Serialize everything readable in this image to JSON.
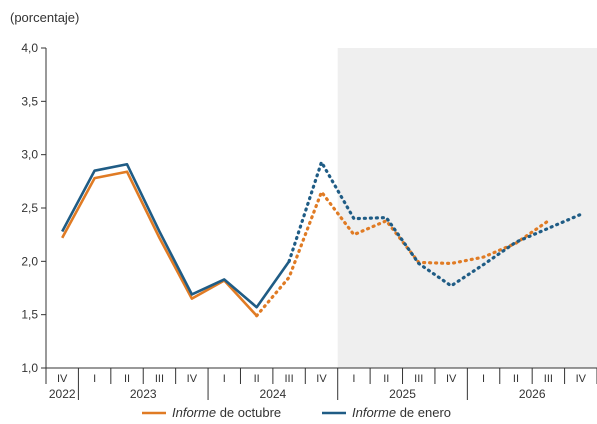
{
  "chart_data": {
    "type": "line",
    "unit_label": "(porcentaje)",
    "ylim": [
      1.0,
      4.0
    ],
    "y_ticks": [
      "1,0",
      "1,5",
      "2,0",
      "2,5",
      "3,0",
      "3,5",
      "4,0"
    ],
    "quarters": [
      "IV",
      "I",
      "II",
      "III",
      "IV",
      "I",
      "II",
      "III",
      "IV",
      "I",
      "II",
      "III",
      "IV",
      "I",
      "II",
      "III",
      "IV"
    ],
    "year_labels": [
      {
        "label": "2022",
        "start": 0,
        "end": 0
      },
      {
        "label": "2023",
        "start": 1,
        "end": 4
      },
      {
        "label": "2024",
        "start": 5,
        "end": 8
      },
      {
        "label": "2025",
        "start": 9,
        "end": 12
      },
      {
        "label": "2026",
        "start": 13,
        "end": 16
      }
    ],
    "forecast_start_index": 8,
    "grid": false,
    "legend_position": "bottom",
    "series": [
      {
        "name_italic": "Informe",
        "name_rest": " de octubre",
        "color": "#E07B24",
        "values": [
          2.22,
          2.78,
          2.84,
          2.22,
          1.65,
          1.82,
          1.49,
          1.85,
          2.65,
          2.25,
          2.38,
          1.99,
          1.98,
          2.04,
          2.17,
          2.38,
          null
        ],
        "solid_until": 6
      },
      {
        "name_italic": "Informe",
        "name_rest": " de enero",
        "color": "#1F5C85",
        "values": [
          2.28,
          2.85,
          2.91,
          2.28,
          1.69,
          1.83,
          1.57,
          2.0,
          2.93,
          2.4,
          2.41,
          1.98,
          1.77,
          1.97,
          2.18,
          2.31,
          2.44
        ],
        "solid_until": 7
      }
    ]
  }
}
